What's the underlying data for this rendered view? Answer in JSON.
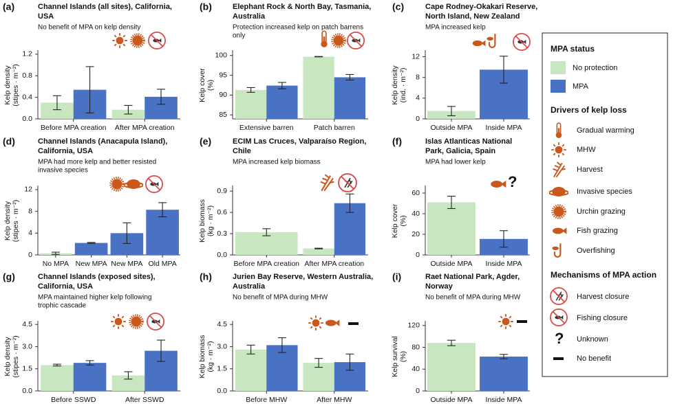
{
  "chart_data": [
    {
      "type": "bar",
      "letter": "(a)",
      "title": [
        "Channel Islands (all sites), California,",
        "USA"
      ],
      "subtitle": [
        "No benefit of MPA on kelp density"
      ],
      "ylabel": [
        "Kelp density",
        "(stipes · m⁻²)"
      ],
      "categories": [
        "Before MPA creation",
        "After MPA creation"
      ],
      "series": [
        {
          "values": [
            0.3,
            0.17
          ],
          "errors": [
            0.13,
            0.08
          ]
        },
        {
          "values": [
            0.54,
            0.41
          ],
          "errors": [
            0.43,
            0.14
          ]
        }
      ],
      "ylim": [
        0,
        1.25
      ],
      "yticks": [
        {
          "value": 0,
          "label": "0.0"
        },
        0.4,
        0.8,
        1.2
      ]
    },
    {
      "type": "bar",
      "letter": "(b)",
      "title": [
        "Elephant Rock & North Bay, Tasmania,",
        "Australia"
      ],
      "subtitle": [
        "Protection increased kelp on patch barrens",
        "only"
      ],
      "ylabel": [
        "Kelp cover",
        "(%)"
      ],
      "categories": [
        "Extensive barren",
        "Patch barren"
      ],
      "series": [
        {
          "values": [
            91.3,
            99.7
          ],
          "errors": [
            0.6,
            0.05
          ]
        },
        {
          "values": [
            92.4,
            94.5
          ],
          "errors": [
            0.8,
            0.7
          ]
        }
      ],
      "ylim": [
        84,
        101
      ],
      "yticks": [
        85,
        90,
        95,
        100
      ]
    },
    {
      "type": "bar",
      "letter": "(c)",
      "title": [
        "Cape Rodney-Okakari Reserve,",
        "North Island, New Zealand"
      ],
      "subtitle": [
        "MPA increased kelp"
      ],
      "ylabel": [
        "Kelp density",
        "(ind. · m⁻²)"
      ],
      "categories": [
        "Outside MPA",
        "Inside MPA"
      ],
      "series": [
        {
          "values": [
            1.5,
            null
          ],
          "errors": [
            0.9,
            null
          ]
        },
        {
          "values": [
            null,
            9.5
          ],
          "errors": [
            null,
            2.6
          ]
        }
      ],
      "ylim": [
        0,
        13
      ],
      "yticks": [
        0,
        4,
        8,
        12
      ]
    },
    {
      "type": "bar",
      "letter": "(d)",
      "title": [
        "Channel Islands (Anacapula Island),",
        "California, USA"
      ],
      "subtitle": [
        "MPA had more kelp and better resisted",
        "invasive species"
      ],
      "ylabel": [
        "Kelp density",
        "(stipes · m⁻²)"
      ],
      "categories": [
        "No MPA",
        "New MPA",
        "New MPA",
        "Old MPA"
      ],
      "series": [
        {
          "values": [
            0.3,
            null,
            null,
            null
          ],
          "errors": [
            0.2,
            null,
            null,
            null
          ]
        },
        {
          "values": [
            null,
            2.2,
            4.0,
            8.3
          ],
          "errors": [
            null,
            0.1,
            1.9,
            1.3
          ]
        }
      ],
      "ylim": [
        0,
        12.5
      ],
      "yticks": [
        0,
        4,
        8,
        12
      ]
    },
    {
      "type": "bar",
      "letter": "(e)",
      "title": [
        "ECIM Las Cruces, Valparaíso Region,",
        "Chile"
      ],
      "subtitle": [
        "MPA increased kelp biomass"
      ],
      "ylabel": [
        "Kelp biomass",
        "(kg · m⁻²)"
      ],
      "categories": [
        "Before MPA creation",
        "After MPA creation"
      ],
      "series": [
        {
          "values": [
            0.32,
            0.09
          ],
          "errors": [
            0.05,
            0.005
          ]
        },
        {
          "values": [
            null,
            0.73
          ],
          "errors": [
            null,
            0.13
          ]
        }
      ],
      "ylim": [
        0,
        0.96
      ],
      "yticks": [
        {
          "value": 0,
          "label": "0.0"
        },
        0.3,
        0.6,
        0.9
      ]
    },
    {
      "type": "bar",
      "letter": "(f)",
      "title": [
        "Islas Atlanticas National",
        "Park, Galicia, Spain"
      ],
      "subtitle": [
        "MPA had lower kelp"
      ],
      "ylabel": [
        "Kelp cover",
        "(%)"
      ],
      "symbol": "?",
      "categories": [
        "Outside MPA",
        "Inside MPA"
      ],
      "series": [
        {
          "values": [
            51,
            null
          ],
          "errors": [
            6,
            null
          ]
        },
        {
          "values": [
            null,
            15.5
          ],
          "errors": [
            null,
            8
          ]
        }
      ],
      "ylim": [
        0,
        66
      ],
      "yticks": [
        0,
        20,
        40,
        60
      ]
    },
    {
      "type": "bar",
      "letter": "(g)",
      "title": [
        "Channel Islands (exposed sites),",
        "California, USA"
      ],
      "subtitle": [
        "MPA maintained higher kelp following",
        "trophic cascade"
      ],
      "ylabel": [
        "Kelp density",
        "(stipes · m⁻²)"
      ],
      "categories": [
        "Before SSWD",
        "After SSWD"
      ],
      "series": [
        {
          "values": [
            1.75,
            1.05
          ],
          "errors": [
            0.06,
            0.25
          ]
        },
        {
          "values": [
            1.9,
            2.72
          ],
          "errors": [
            0.15,
            0.72
          ]
        }
      ],
      "ylim": [
        0,
        4.65
      ],
      "yticks": [
        {
          "value": 0,
          "label": "0.0"
        },
        1.5,
        {
          "value": 3,
          "label": "3.0"
        },
        4.5
      ]
    },
    {
      "type": "bar",
      "letter": "(h)",
      "title": [
        "Jurien Bay Reserve, Western Australia,",
        "Australia"
      ],
      "subtitle": [
        "No benefit of MPA during MHW"
      ],
      "ylabel": [
        "Kelp biomass",
        "(kg · m⁻²)"
      ],
      "categories": [
        "Before MHW",
        "After MHW"
      ],
      "series": [
        {
          "values": [
            2.8,
            1.9
          ],
          "errors": [
            0.3,
            0.3
          ]
        },
        {
          "values": [
            3.1,
            1.95
          ],
          "errors": [
            0.5,
            0.55
          ]
        }
      ],
      "ylim": [
        0,
        4.65
      ],
      "yticks": [
        {
          "value": 0,
          "label": "0.0"
        },
        1.5,
        {
          "value": 3,
          "label": "3.0"
        },
        4.5
      ]
    },
    {
      "type": "bar",
      "letter": "(i)",
      "title": [
        "Raet National Park, Agder,",
        "Norway"
      ],
      "subtitle": [
        "No benefit of MPA during MHW"
      ],
      "ylabel": [
        "Kelp survival",
        "(%)"
      ],
      "categories": [
        "Outside MPA",
        "Inside MPA"
      ],
      "series": [
        {
          "values": [
            88,
            null
          ],
          "errors": [
            5,
            null
          ]
        },
        {
          "values": [
            null,
            63
          ],
          "errors": [
            null,
            4
          ]
        }
      ],
      "ylim": [
        0,
        126
      ],
      "yticks": [
        0,
        40,
        80,
        120
      ]
    }
  ],
  "legend": {
    "status_title": "MPA status",
    "status": [
      {
        "name": "No protection",
        "color": "#c8e6c0"
      },
      {
        "name": "MPA",
        "color": "#4a72c4"
      }
    ],
    "drivers_title": "Drivers of kelp loss",
    "drivers": [
      "Gradual warming",
      "MHW",
      "Harvest",
      "Invasive species",
      "Urchin grazing",
      "Fish grazing",
      "Overfishing"
    ],
    "mechanisms_title": "Mechanisms of MPA action",
    "mechanisms": [
      "Harvest closure",
      "Fishing closure",
      "Unknown",
      "No benefit"
    ],
    "unknown_symbol": "?"
  }
}
